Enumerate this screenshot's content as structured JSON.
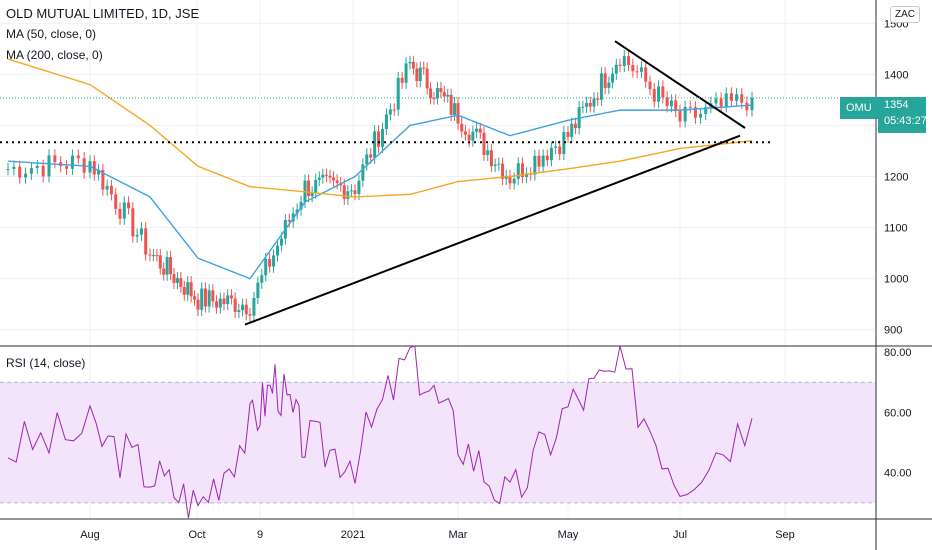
{
  "header": {
    "symbol_line": "OLD MUTUAL LIMITED, 1D, JSE",
    "ma50_label": "MA (50, close, 0)",
    "ma200_label": "MA (200, close, 0)",
    "currency": "ZAC"
  },
  "rsi_panel": {
    "label": "RSI (14, close)"
  },
  "last_price": {
    "ticker": "OMU",
    "value": "1354",
    "countdown": "05:43:27"
  },
  "colors": {
    "up": "#26a69a",
    "down": "#ef5350",
    "ma50": "#3ea3e0",
    "ma200": "#f5a623",
    "rsi_line": "#9c27b0",
    "rsi_band": "#f3e3fb",
    "trendline": "#000000"
  },
  "chart_data": [
    {
      "type": "line",
      "name": "price",
      "x_tick_labels": [
        "Aug",
        "Oct",
        "9",
        "2021",
        "Mar",
        "May",
        "Jul",
        "Sep"
      ],
      "y_ticks": [
        900,
        1000,
        1100,
        1200,
        1300,
        1400,
        1500
      ],
      "ylim": [
        870,
        1530
      ],
      "close_anchors": [
        {
          "x": "Jul 2020",
          "y": 1215
        },
        {
          "x": "Aug 2020",
          "y": 1230
        },
        {
          "x": "Sep 2020",
          "y": 1050
        },
        {
          "x": "Oct 2020",
          "y": 960
        },
        {
          "x": "Nov 2020",
          "y": 950
        },
        {
          "x": "Dec 2020",
          "y": 1180
        },
        {
          "x": "Jan 2021",
          "y": 1180
        },
        {
          "x": "Feb 2021",
          "y": 1420
        },
        {
          "x": "Mar 2021",
          "y": 1320
        },
        {
          "x": "Apr 2021",
          "y": 1200
        },
        {
          "x": "May 2021",
          "y": 1280
        },
        {
          "x": "Jun 2021",
          "y": 1440
        },
        {
          "x": "Jul 2021",
          "y": 1310
        },
        {
          "x": "Aug 2021",
          "y": 1354
        }
      ],
      "series": [
        {
          "name": "MA (50, close, 0)",
          "y": [
            1230,
            1220,
            1160,
            1040,
            1000,
            1150,
            1200,
            1300,
            1320,
            1280,
            1310,
            1330,
            1330,
            1340
          ]
        },
        {
          "name": "MA (200, close, 0)",
          "y": [
            1430,
            1380,
            1300,
            1220,
            1180,
            1170,
            1160,
            1165,
            1190,
            1200,
            1215,
            1230,
            1255,
            1270
          ]
        }
      ],
      "annotations": [
        {
          "kind": "dotted-horizontal",
          "y": 1267
        },
        {
          "kind": "trendline-rising",
          "from": {
            "x": "Nov 2020",
            "y": 910
          },
          "to": {
            "x": "Aug 2021",
            "y": 1280
          }
        },
        {
          "kind": "trendline-falling",
          "from": {
            "x": "Jun 2021",
            "y": 1465
          },
          "to": {
            "x": "Aug 2021",
            "y": 1295
          }
        }
      ],
      "last_value": 1354
    },
    {
      "type": "line",
      "name": "RSI (14, close)",
      "y_ticks": [
        40,
        60,
        80
      ],
      "ylim": [
        25,
        82
      ],
      "bands": {
        "upper": 70,
        "lower": 30
      },
      "anchors": [
        {
          "x": "Jul 2020",
          "y": 48
        },
        {
          "x": "Aug 2020",
          "y": 54
        },
        {
          "x": "Sep 2020",
          "y": 40
        },
        {
          "x": "Oct 2020",
          "y": 29
        },
        {
          "x": "Nov 2020",
          "y": 55
        },
        {
          "x": "Nov 2020",
          "y": 71
        },
        {
          "x": "Dec 2020",
          "y": 50
        },
        {
          "x": "Jan 2021",
          "y": 45
        },
        {
          "x": "Feb 2021",
          "y": 79
        },
        {
          "x": "Mar 2021",
          "y": 52
        },
        {
          "x": "Apr 2021",
          "y": 30
        },
        {
          "x": "May 2021",
          "y": 62
        },
        {
          "x": "Jun 2021",
          "y": 74
        },
        {
          "x": "Jul 2021",
          "y": 38
        },
        {
          "x": "Aug 2021",
          "y": 58
        }
      ]
    }
  ]
}
